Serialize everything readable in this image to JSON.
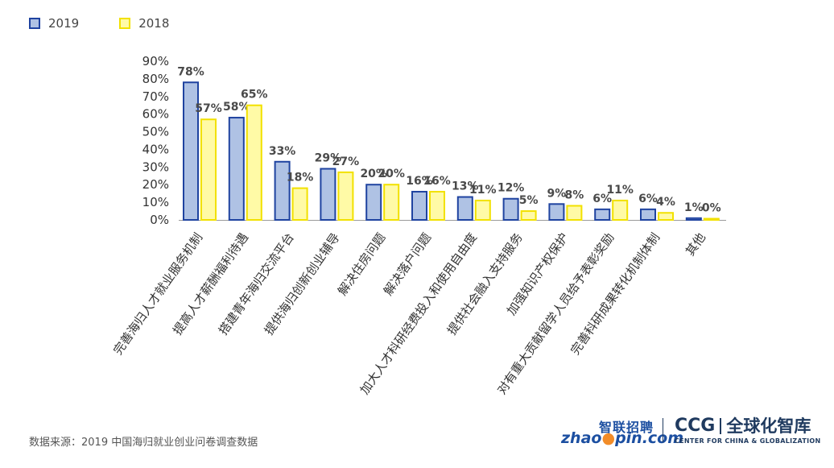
{
  "legend": [
    {
      "name": "2019",
      "color": "#afc2e4",
      "border": "#1f43a0"
    },
    {
      "name": "2018",
      "color": "#fffaa6",
      "border": "#f2e100"
    }
  ],
  "chart_data": {
    "type": "bar",
    "categories": [
      "完善海归人才就业服务机制",
      "提高人才薪酬福利待遇",
      "搭建青年海归交流平台",
      "提供海归创新创业辅导",
      "解决住房问题",
      "解决落户问题",
      "加大人才科研经费投入和使用自由度",
      "提供社会融入支持服务",
      "加强知识产权保护",
      "对有重大贡献留学人员给予表彰奖励",
      "完善科研成果转化机制体制",
      "其他"
    ],
    "series": [
      {
        "name": "2019",
        "values": [
          78,
          58,
          33,
          29,
          20,
          16,
          13,
          12,
          9,
          6,
          6,
          1
        ]
      },
      {
        "name": "2018",
        "values": [
          57,
          65,
          18,
          27,
          20,
          16,
          11,
          5,
          8,
          11,
          4,
          0
        ]
      }
    ],
    "value_labels": {
      "2019": [
        "78%",
        "58%",
        "33%",
        "29%",
        "20%",
        "16%",
        "13%",
        "12%",
        "9%",
        "6%",
        "6%",
        "1%"
      ],
      "2018": [
        "57%",
        "65%",
        "18%",
        "27%",
        "20%",
        "16%",
        "11%",
        "5%",
        "8%",
        "11%",
        "4%",
        "0%"
      ]
    },
    "yticks": [
      "0%",
      "10%",
      "20%",
      "30%",
      "40%",
      "50%",
      "60%",
      "70%",
      "80%",
      "90%"
    ],
    "ylim": [
      0,
      90
    ],
    "grid": false,
    "legend_position": "top-left"
  },
  "footer": {
    "source": "数据来源：2019 中国海归就业创业问卷调查数据"
  },
  "logos": {
    "zhaopin_cn": "智联招聘",
    "zhaopin_en_a": "zhao",
    "zhaopin_en_dot": "●",
    "zhaopin_en_b": "pin.com",
    "ccg_mark": "CCG",
    "ccg_cn": "全球化智库",
    "ccg_en": "CENTER FOR CHINA & GLOBALIZATION"
  }
}
